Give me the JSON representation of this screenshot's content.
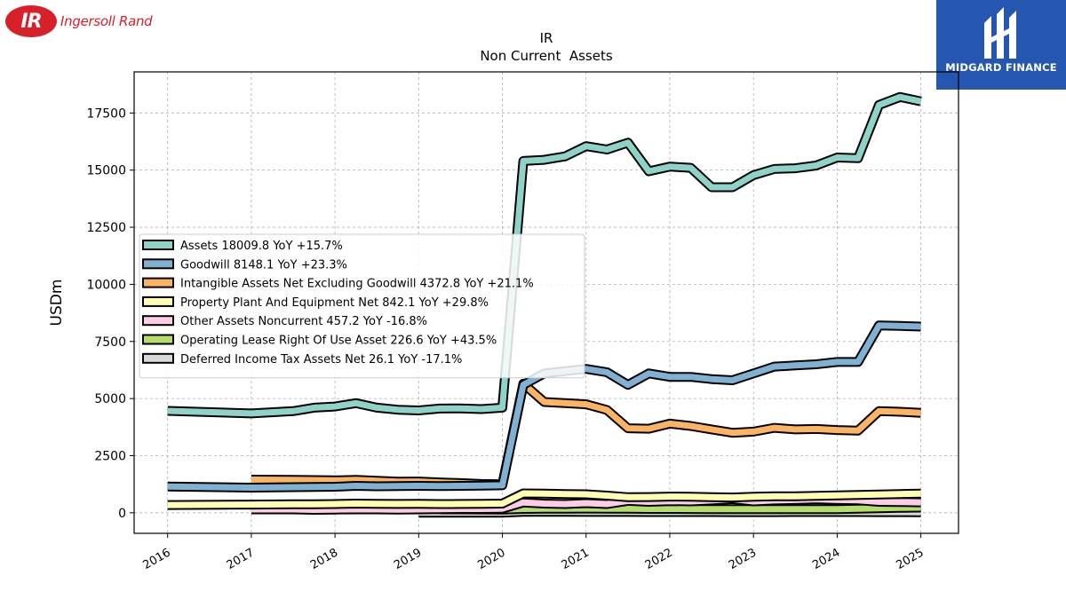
{
  "header": {
    "company_logo_text": "Ingersoll Rand",
    "company_logo_initials": "IR",
    "publisher_logo_text": "MIDGARD FINANCE"
  },
  "colors": {
    "page_bg": "#ffffff",
    "ir_red": "#d8202a",
    "midgard_blue": "#2556b0"
  },
  "chart_data": {
    "type": "line",
    "title": "IR",
    "subtitle": "Non Current  Assets",
    "ylabel": "USDm",
    "xlabel": "",
    "ylim": [
      -900,
      19300
    ],
    "xlim": [
      2015.6,
      2025.45
    ],
    "yticks": [
      0,
      2500,
      5000,
      7500,
      10000,
      12500,
      15000,
      17500
    ],
    "ytick_labels": [
      "0",
      "2500",
      "5000",
      "7500",
      "10000",
      "12500",
      "15000",
      "17500"
    ],
    "xticks": [
      2016,
      2017,
      2018,
      2019,
      2020,
      2021,
      2022,
      2023,
      2024,
      2025
    ],
    "xtick_labels": [
      "2016",
      "2017",
      "2018",
      "2019",
      "2020",
      "2021",
      "2022",
      "2023",
      "2024",
      "2025"
    ],
    "grid": true,
    "legend_position": "center-left",
    "series": [
      {
        "name": "Assets",
        "legend_label": "Assets  18009.8 YoY +15.7%",
        "color": "#8dd3c7",
        "x": [
          2016.0,
          2017.0,
          2017.5,
          2017.75,
          2018.0,
          2018.25,
          2018.5,
          2018.75,
          2019.0,
          2019.25,
          2019.5,
          2019.75,
          2020.0,
          2020.25,
          2020.5,
          2020.75,
          2021.0,
          2021.25,
          2021.5,
          2021.75,
          2022.0,
          2022.25,
          2022.5,
          2022.75,
          2023.0,
          2023.25,
          2023.5,
          2023.75,
          2024.0,
          2024.25,
          2024.5,
          2024.75,
          2025.0
        ],
        "y": [
          4460,
          4350,
          4450,
          4600,
          4650,
          4800,
          4600,
          4510,
          4480,
          4560,
          4570,
          4540,
          4600,
          15400,
          15450,
          15600,
          16050,
          15900,
          16200,
          14950,
          15150,
          15100,
          14250,
          14250,
          14780,
          15050,
          15080,
          15200,
          15550,
          15520,
          17850,
          18200,
          18010
        ]
      },
      {
        "name": "Goodwill",
        "legend_label": "Goodwill  8148.1 YoY +23.3%",
        "color": "#80b1d3",
        "x": [
          2016.0,
          2017.0,
          2017.5,
          2017.75,
          2018.0,
          2018.25,
          2018.5,
          2018.75,
          2019.0,
          2019.25,
          2019.5,
          2019.75,
          2020.0,
          2020.25,
          2020.5,
          2020.75,
          2021.0,
          2021.25,
          2021.5,
          2021.75,
          2022.0,
          2022.25,
          2022.5,
          2022.75,
          2023.0,
          2023.25,
          2023.5,
          2023.75,
          2024.0,
          2024.25,
          2024.5,
          2024.75,
          2025.0
        ],
        "y": [
          1150,
          1100,
          1120,
          1130,
          1140,
          1180,
          1160,
          1170,
          1180,
          1170,
          1180,
          1190,
          1200,
          5600,
          6100,
          6200,
          6300,
          6150,
          5600,
          6100,
          5950,
          5950,
          5850,
          5800,
          6100,
          6400,
          6450,
          6500,
          6600,
          6600,
          8200,
          8180,
          8150
        ]
      },
      {
        "name": "Intangible Assets Net Excluding Goodwill",
        "legend_label": "Intangible Assets Net Excluding Goodwill  4372.8 YoY +21.1%",
        "color": "#fdb462",
        "x": [
          2017.0,
          2017.5,
          2017.75,
          2018.0,
          2018.25,
          2018.5,
          2018.75,
          2019.0,
          2019.25,
          2019.5,
          2019.75,
          2020.0,
          2020.25,
          2020.5,
          2020.75,
          2021.0,
          2021.25,
          2021.5,
          2021.75,
          2022.0,
          2022.25,
          2022.5,
          2022.75,
          2023.0,
          2023.25,
          2023.5,
          2023.75,
          2024.0,
          2024.25,
          2024.5,
          2024.75,
          2025.0
        ],
        "y": [
          1450,
          1440,
          1430,
          1420,
          1440,
          1400,
          1360,
          1370,
          1330,
          1300,
          1260,
          1250,
          5650,
          4850,
          4800,
          4750,
          4500,
          3700,
          3680,
          3900,
          3800,
          3650,
          3500,
          3550,
          3720,
          3650,
          3670,
          3620,
          3600,
          4450,
          4420,
          4370
        ]
      },
      {
        "name": "Property Plant And Equipment Net",
        "legend_label": "Property Plant And Equipment Net  842.1 YoY +29.8%",
        "color": "#ffffb3",
        "x": [
          2016.0,
          2017.0,
          2017.5,
          2017.75,
          2018.0,
          2018.25,
          2018.5,
          2018.75,
          2019.0,
          2019.25,
          2019.5,
          2019.75,
          2020.0,
          2020.25,
          2020.5,
          2020.75,
          2021.0,
          2021.25,
          2021.5,
          2021.75,
          2022.0,
          2022.25,
          2022.5,
          2022.75,
          2023.0,
          2023.25,
          2023.5,
          2023.75,
          2024.0,
          2024.25,
          2024.5,
          2024.75,
          2025.0
        ],
        "y": [
          340,
          360,
          370,
          375,
          380,
          400,
          390,
          385,
          390,
          380,
          385,
          390,
          400,
          850,
          840,
          820,
          810,
          750,
          680,
          690,
          710,
          700,
          680,
          670,
          700,
          720,
          720,
          740,
          760,
          780,
          800,
          820,
          842
        ]
      },
      {
        "name": "Other Assets Noncurrent",
        "legend_label": "Other Assets Noncurrent  457.2 YoY -16.8%",
        "color": "#fccde5",
        "x": [
          2017.0,
          2017.5,
          2017.75,
          2018.0,
          2018.25,
          2018.5,
          2018.75,
          2019.0,
          2019.25,
          2019.5,
          2019.75,
          2020.0,
          2020.25,
          2020.5,
          2020.75,
          2021.0,
          2021.25,
          2021.5,
          2021.75,
          2022.0,
          2022.25,
          2022.5,
          2022.75,
          2023.0,
          2023.25,
          2023.5,
          2023.75,
          2024.0,
          2024.25,
          2024.5,
          2024.75,
          2025.0
        ],
        "y": [
          150,
          150,
          130,
          140,
          150,
          150,
          140,
          150,
          160,
          170,
          170,
          180,
          450,
          400,
          380,
          420,
          380,
          520,
          480,
          510,
          500,
          540,
          600,
          500,
          540,
          560,
          590,
          560,
          550,
          480,
          470,
          457
        ]
      },
      {
        "name": "Operating Lease Right Of Use Asset",
        "legend_label": "Operating Lease Right Of Use Asset  226.6 YoY +43.5%",
        "color": "#b3de69",
        "x": [
          2019.25,
          2019.5,
          2019.75,
          2020.0,
          2020.25,
          2020.5,
          2020.75,
          2021.0,
          2021.25,
          2021.5,
          2021.75,
          2022.0,
          2022.25,
          2022.5,
          2022.75,
          2023.0,
          2023.25,
          2023.5,
          2023.75,
          2024.0,
          2024.25,
          2024.5,
          2024.75,
          2025.0
        ],
        "y": [
          150,
          150,
          145,
          140,
          170,
          180,
          180,
          185,
          180,
          175,
          170,
          168,
          165,
          160,
          160,
          158,
          160,
          158,
          156,
          160,
          180,
          200,
          215,
          226.6
        ]
      },
      {
        "name": "Deferred Income Tax Assets Net",
        "legend_label": "Deferred Income Tax Assets Net  26.1 YoY -17.1%",
        "color": "#d9d9d9",
        "x": [
          2019.0,
          2019.25,
          2019.5,
          2019.75,
          2020.0,
          2020.25,
          2020.5,
          2020.75,
          2021.0,
          2021.25,
          2021.5,
          2021.75,
          2022.0,
          2022.25,
          2022.5,
          2022.75,
          2023.0,
          2023.25,
          2023.5,
          2023.75,
          2024.0,
          2024.25,
          2024.5,
          2024.75,
          2025.0
        ],
        "y": [
          0,
          2,
          3,
          3,
          4,
          45,
          40,
          40,
          38,
          36,
          35,
          34,
          33,
          32,
          31,
          30,
          30,
          30,
          31,
          32,
          32,
          31,
          30,
          28,
          26.1
        ]
      }
    ]
  }
}
